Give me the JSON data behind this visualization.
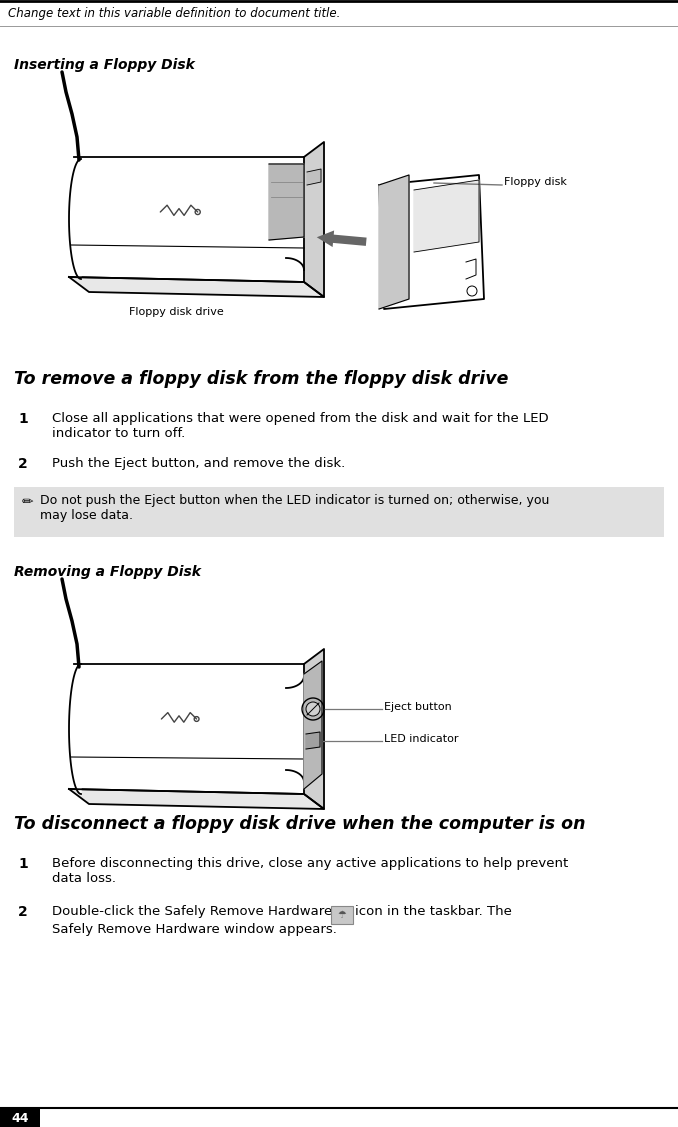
{
  "page_width": 6.78,
  "page_height": 11.27,
  "bg_color": "#ffffff",
  "header_text": "Change text in this variable definition to document title.",
  "section1_title": "Inserting a Floppy Disk",
  "section2_heading": "To remove a floppy disk from the floppy disk drive",
  "step1_num": "1",
  "step1_text": "Close all applications that were opened from the disk and wait for the LED\nindicator to turn off.",
  "step2_num": "2",
  "step2_text": "Push the Eject button, and remove the disk.",
  "note_text": "Do not push the Eject button when the LED indicator is turned on; otherwise, you\nmay lose data.",
  "note_bg": "#e0e0e0",
  "section3_title": "Removing a Floppy Disk",
  "section4_heading": "To disconnect a floppy disk drive when the computer is on",
  "step3_num": "1",
  "step3_text": "Before disconnecting this drive, close any active applications to help prevent\ndata loss.",
  "step4_num": "2",
  "step4_text_a": "Double-click the Safely Remove Hardware",
  "step4_text_b": "icon in the taskbar. The",
  "step4_text_c": "Safely Remove Hardware window appears.",
  "footer_num": "44",
  "footer_bg": "#000000",
  "footer_text_color": "#ffffff",
  "label_floppy_disk_drive": "Floppy disk drive",
  "label_floppy_disk": "Floppy disk",
  "label_eject_button": "Eject button",
  "label_led_indicator": "LED indicator"
}
